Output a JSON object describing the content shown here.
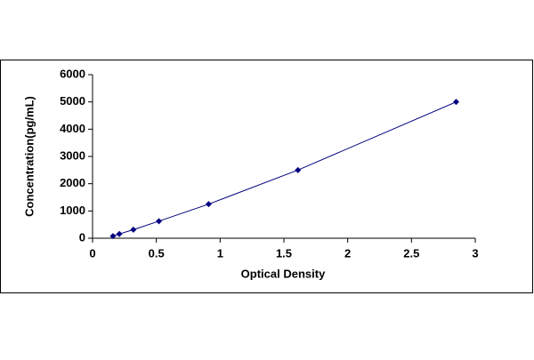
{
  "chart_data": {
    "type": "scatter",
    "x_label": "Optical Density",
    "y_label": "Concentration(pg/mL)",
    "x": [
      0.16,
      0.21,
      0.32,
      0.52,
      0.91,
      1.61,
      2.85
    ],
    "values": [
      78,
      156,
      312,
      625,
      1250,
      2500,
      5000
    ],
    "color": "#000080",
    "connect": true,
    "grid": false,
    "xlim": [
      0,
      3
    ],
    "xticks": [
      0,
      0.5,
      1,
      1.5,
      2,
      2.5,
      3
    ],
    "ylim": [
      0,
      6000
    ],
    "yticks": [
      0,
      1000,
      2000,
      3000,
      4000,
      5000,
      6000
    ]
  }
}
